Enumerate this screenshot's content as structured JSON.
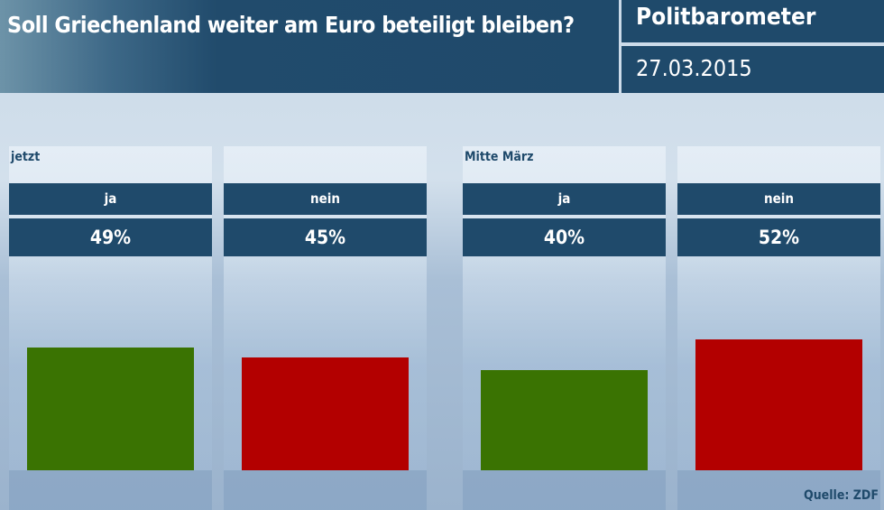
{
  "header": {
    "question": "Soll Griechenland weiter am Euro beteiligt bleiben?",
    "brand": "Politbarometer",
    "date": "27.03.2015"
  },
  "source": "Quelle: ZDF",
  "colors": {
    "ja": "#3a7302",
    "nein": "#b30000",
    "panel": "#1f4a6b"
  },
  "chart_data": {
    "type": "bar",
    "title": "Soll Griechenland weiter am Euro beteiligt bleiben?",
    "groups": [
      {
        "label": "jetzt",
        "bars": [
          {
            "category": "ja",
            "value": 49,
            "display": "49%"
          },
          {
            "category": "nein",
            "value": 45,
            "display": "45%"
          }
        ]
      },
      {
        "label": "Mitte März",
        "bars": [
          {
            "category": "ja",
            "value": 40,
            "display": "40%"
          },
          {
            "category": "nein",
            "value": 52,
            "display": "52%"
          }
        ]
      }
    ],
    "unit": "%",
    "ylim": [
      0,
      100
    ],
    "grid": false
  }
}
